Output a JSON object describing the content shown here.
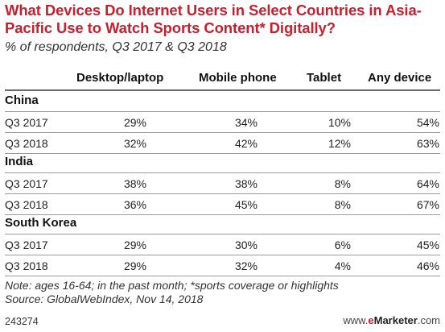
{
  "chart_data": {
    "type": "table",
    "title": "What Devices Do Internet Users in Select Countries in Asia-Pacific Use to Watch Sports Content* Digitally?",
    "subtitle": "% of respondents, Q3 2017 & Q3 2018",
    "columns": [
      "Desktop/laptop",
      "Mobile phone",
      "Tablet",
      "Any device"
    ],
    "groups": [
      {
        "name": "China",
        "rows": [
          {
            "label": "Q3 2017",
            "values": [
              "29%",
              "34%",
              "10%",
              "54%"
            ]
          },
          {
            "label": "Q3 2018",
            "values": [
              "32%",
              "42%",
              "12%",
              "63%"
            ]
          }
        ]
      },
      {
        "name": "India",
        "rows": [
          {
            "label": "Q3 2017",
            "values": [
              "38%",
              "38%",
              "8%",
              "64%"
            ]
          },
          {
            "label": "Q3 2018",
            "values": [
              "36%",
              "45%",
              "8%",
              "67%"
            ]
          }
        ]
      },
      {
        "name": "South Korea",
        "rows": [
          {
            "label": "Q3 2017",
            "values": [
              "29%",
              "30%",
              "6%",
              "45%"
            ]
          },
          {
            "label": "Q3 2018",
            "values": [
              "29%",
              "32%",
              "4%",
              "46%"
            ]
          }
        ]
      }
    ],
    "note": "Note: ages 16-64; in the past month; *sports coverage or highlights",
    "source": "Source: GlobalWebIndex, Nov 14, 2018"
  },
  "footer": {
    "id": "243274",
    "brand_prefix": "www.",
    "brand_e": "e",
    "brand_name": "Marketer",
    "brand_suffix": ".com"
  },
  "colors": {
    "title": "#c8202f",
    "rule": "#9a9a9a"
  }
}
